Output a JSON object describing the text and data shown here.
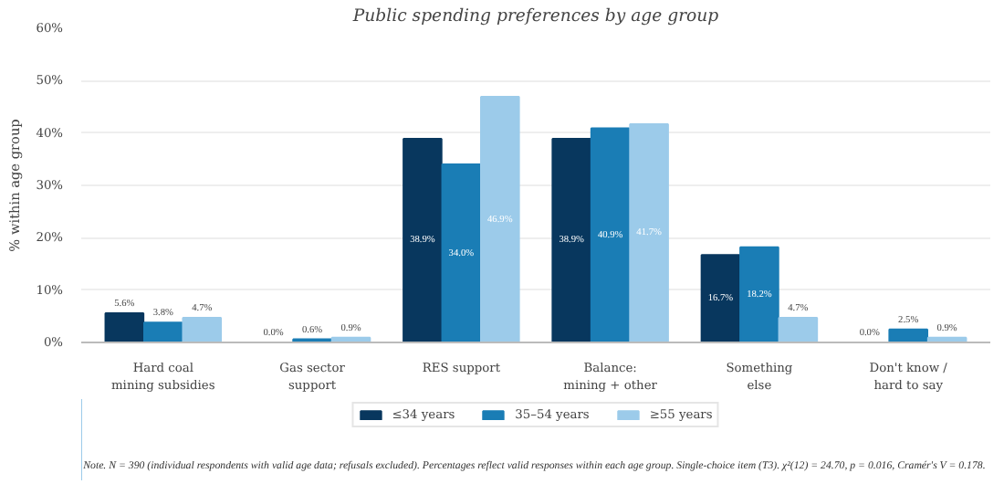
{
  "chart_data": {
    "type": "bar",
    "title": "Public spending preferences by age group",
    "ylabel": "% within age group",
    "categories": [
      "Hard coal\nmining subsidies",
      "Gas sector\nsupport",
      "RES support",
      "Balance:\nmining + other",
      "Something\nelse",
      "Don't know /\nhard to say"
    ],
    "series": [
      {
        "name": "≤34 years",
        "color": "#08375e",
        "values": [
          5.6,
          0.0,
          38.9,
          38.9,
          16.7,
          0.0
        ],
        "value_labels": [
          "5.6%",
          "0.0%",
          "38.9%",
          "38.9%",
          "16.7%",
          "0.0%"
        ]
      },
      {
        "name": "35–54 years",
        "color": "#1a7db5",
        "values": [
          3.8,
          0.6,
          34.0,
          40.9,
          18.2,
          2.5
        ],
        "value_labels": [
          "3.8%",
          "0.6%",
          "34.0%",
          "40.9%",
          "18.2%",
          "2.5%"
        ]
      },
      {
        "name": "≥55 years",
        "color": "#9ccbea",
        "values": [
          4.7,
          0.9,
          46.9,
          41.7,
          4.7,
          0.9
        ],
        "value_labels": [
          "4.7%",
          "0.9%",
          "46.9%",
          "41.7%",
          "4.7%",
          "0.9%"
        ]
      }
    ],
    "ylim": [
      0,
      60
    ],
    "yticks": [
      {
        "value": 0,
        "label": "0%"
      },
      {
        "value": 10,
        "label": "10%"
      },
      {
        "value": 20,
        "label": "20%"
      },
      {
        "value": 30,
        "label": "30%"
      },
      {
        "value": 40,
        "label": "40%"
      },
      {
        "value": 50,
        "label": "50%"
      },
      {
        "value": 60,
        "label": "60%"
      }
    ],
    "grid": "y",
    "legend": "bottom",
    "annotations": [
      "Note.  N = 390 (individual respondents with valid age data; refusals excluded). Percentages reflect valid responses within each age group. Single-choice item (T3). χ²(12) = 24.70, p = 0.016, Cramér's V = 0.178."
    ]
  }
}
